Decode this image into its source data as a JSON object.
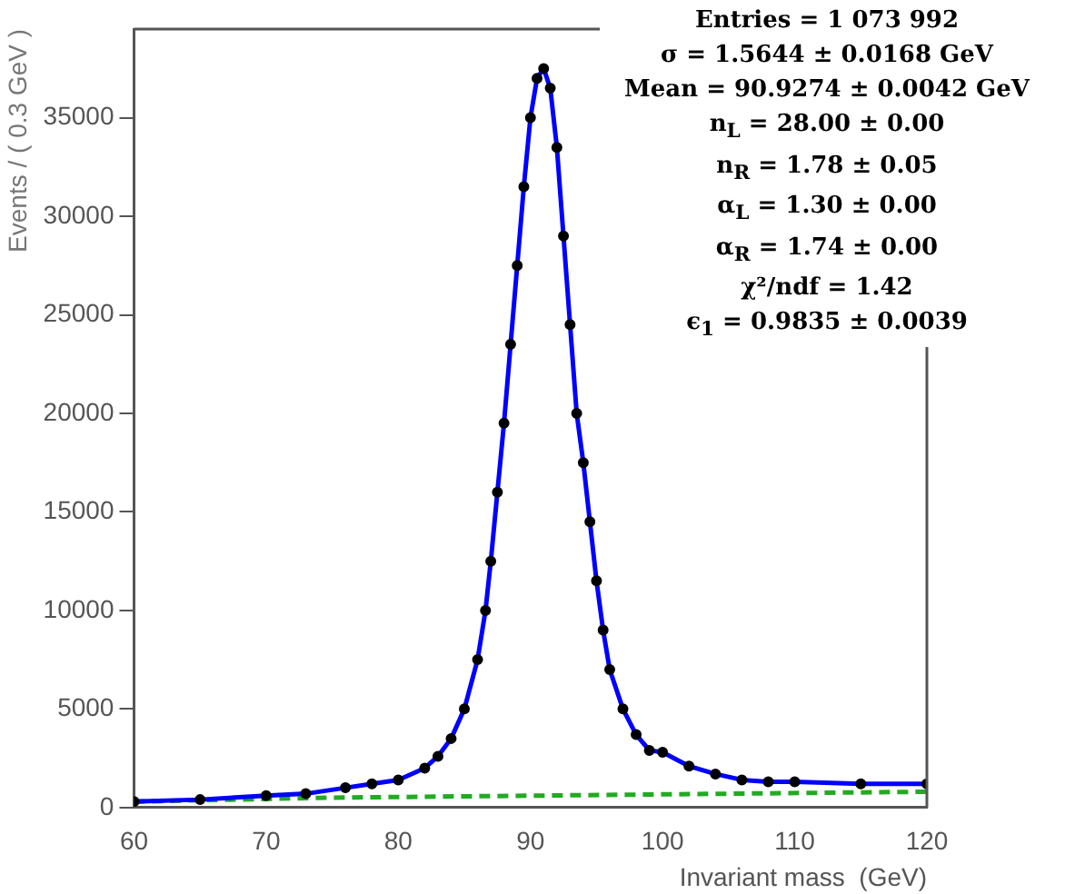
{
  "chart_data": {
    "type": "scatter",
    "xlabel": "Invariant mass  (GeV)",
    "ylabel": "Events / ( 0.3 GeV )",
    "xlim": [
      60,
      120
    ],
    "xticks": [
      60,
      70,
      80,
      90,
      100,
      110,
      120
    ],
    "ylim": [
      0,
      39500
    ],
    "yticks": [
      0,
      5000,
      10000,
      15000,
      20000,
      25000,
      30000,
      35000
    ],
    "grid": false,
    "legend": false,
    "series": [
      {
        "type": "scatter",
        "color": "#000000",
        "marker": "circle",
        "x": [
          60,
          65,
          70,
          73,
          76,
          78,
          80,
          82,
          83,
          84,
          85,
          86,
          86.6,
          87,
          87.5,
          88,
          88.5,
          89,
          89.5,
          90,
          90.5,
          91,
          91.5,
          92,
          92.5,
          93,
          93.5,
          94,
          94.5,
          95,
          95.5,
          96,
          97,
          98,
          99,
          100,
          102,
          104,
          106,
          108,
          110,
          115,
          120
        ],
        "values": [
          300,
          400,
          600,
          700,
          1000,
          1200,
          1400,
          2000,
          2600,
          3500,
          5000,
          7500,
          10000,
          12500,
          16000,
          19500,
          23500,
          27500,
          31500,
          35000,
          37000,
          37500,
          36500,
          33500,
          29000,
          24500,
          20000,
          17500,
          14500,
          11500,
          9000,
          7000,
          5000,
          3700,
          2900,
          2800,
          2100,
          1700,
          1400,
          1300,
          1300,
          1200,
          1200
        ]
      },
      {
        "type": "line",
        "color": "#0000ff",
        "line_style": "solid",
        "marker": "none",
        "x": [
          60,
          65,
          70,
          73,
          76,
          78,
          80,
          82,
          83,
          84,
          85,
          86,
          86.6,
          87,
          87.5,
          88,
          88.5,
          89,
          89.5,
          90,
          90.5,
          91,
          91.5,
          92,
          92.5,
          93,
          93.5,
          94,
          94.5,
          95,
          95.5,
          96,
          97,
          98,
          99,
          100,
          102,
          104,
          106,
          108,
          110,
          115,
          120
        ],
        "values": [
          300,
          400,
          600,
          700,
          1000,
          1200,
          1400,
          2000,
          2600,
          3500,
          5000,
          7500,
          10000,
          12500,
          16000,
          19500,
          23500,
          27500,
          31500,
          35000,
          37000,
          37500,
          36500,
          33500,
          29000,
          24500,
          20000,
          17500,
          14500,
          11500,
          9000,
          7000,
          5000,
          3700,
          2900,
          2800,
          2100,
          1700,
          1400,
          1300,
          1300,
          1200,
          1200
        ]
      },
      {
        "type": "line",
        "color": "#22aa22",
        "line_style": "dashed",
        "marker": "none",
        "x": [
          60,
          75,
          90,
          105,
          120
        ],
        "values": [
          300,
          500,
          600,
          700,
          800
        ]
      }
    ],
    "annotations": [
      "Entries = 1 073 992",
      "σ = 1.5644 ± 0.0168 GeV",
      "Mean = 90.9274 ± 0.0042 GeV",
      "n$_{L}$ = 28.00 ± 0.00",
      "n$_{R}$ = 1.78 ± 0.05",
      "α$_{L}$ = 1.30 ± 0.00",
      "α$_{R}$ = 1.74 ± 0.00",
      "χ²/ndf = 1.42",
      "ϵ$_{1}$ = 0.9835 ± 0.0039"
    ]
  }
}
